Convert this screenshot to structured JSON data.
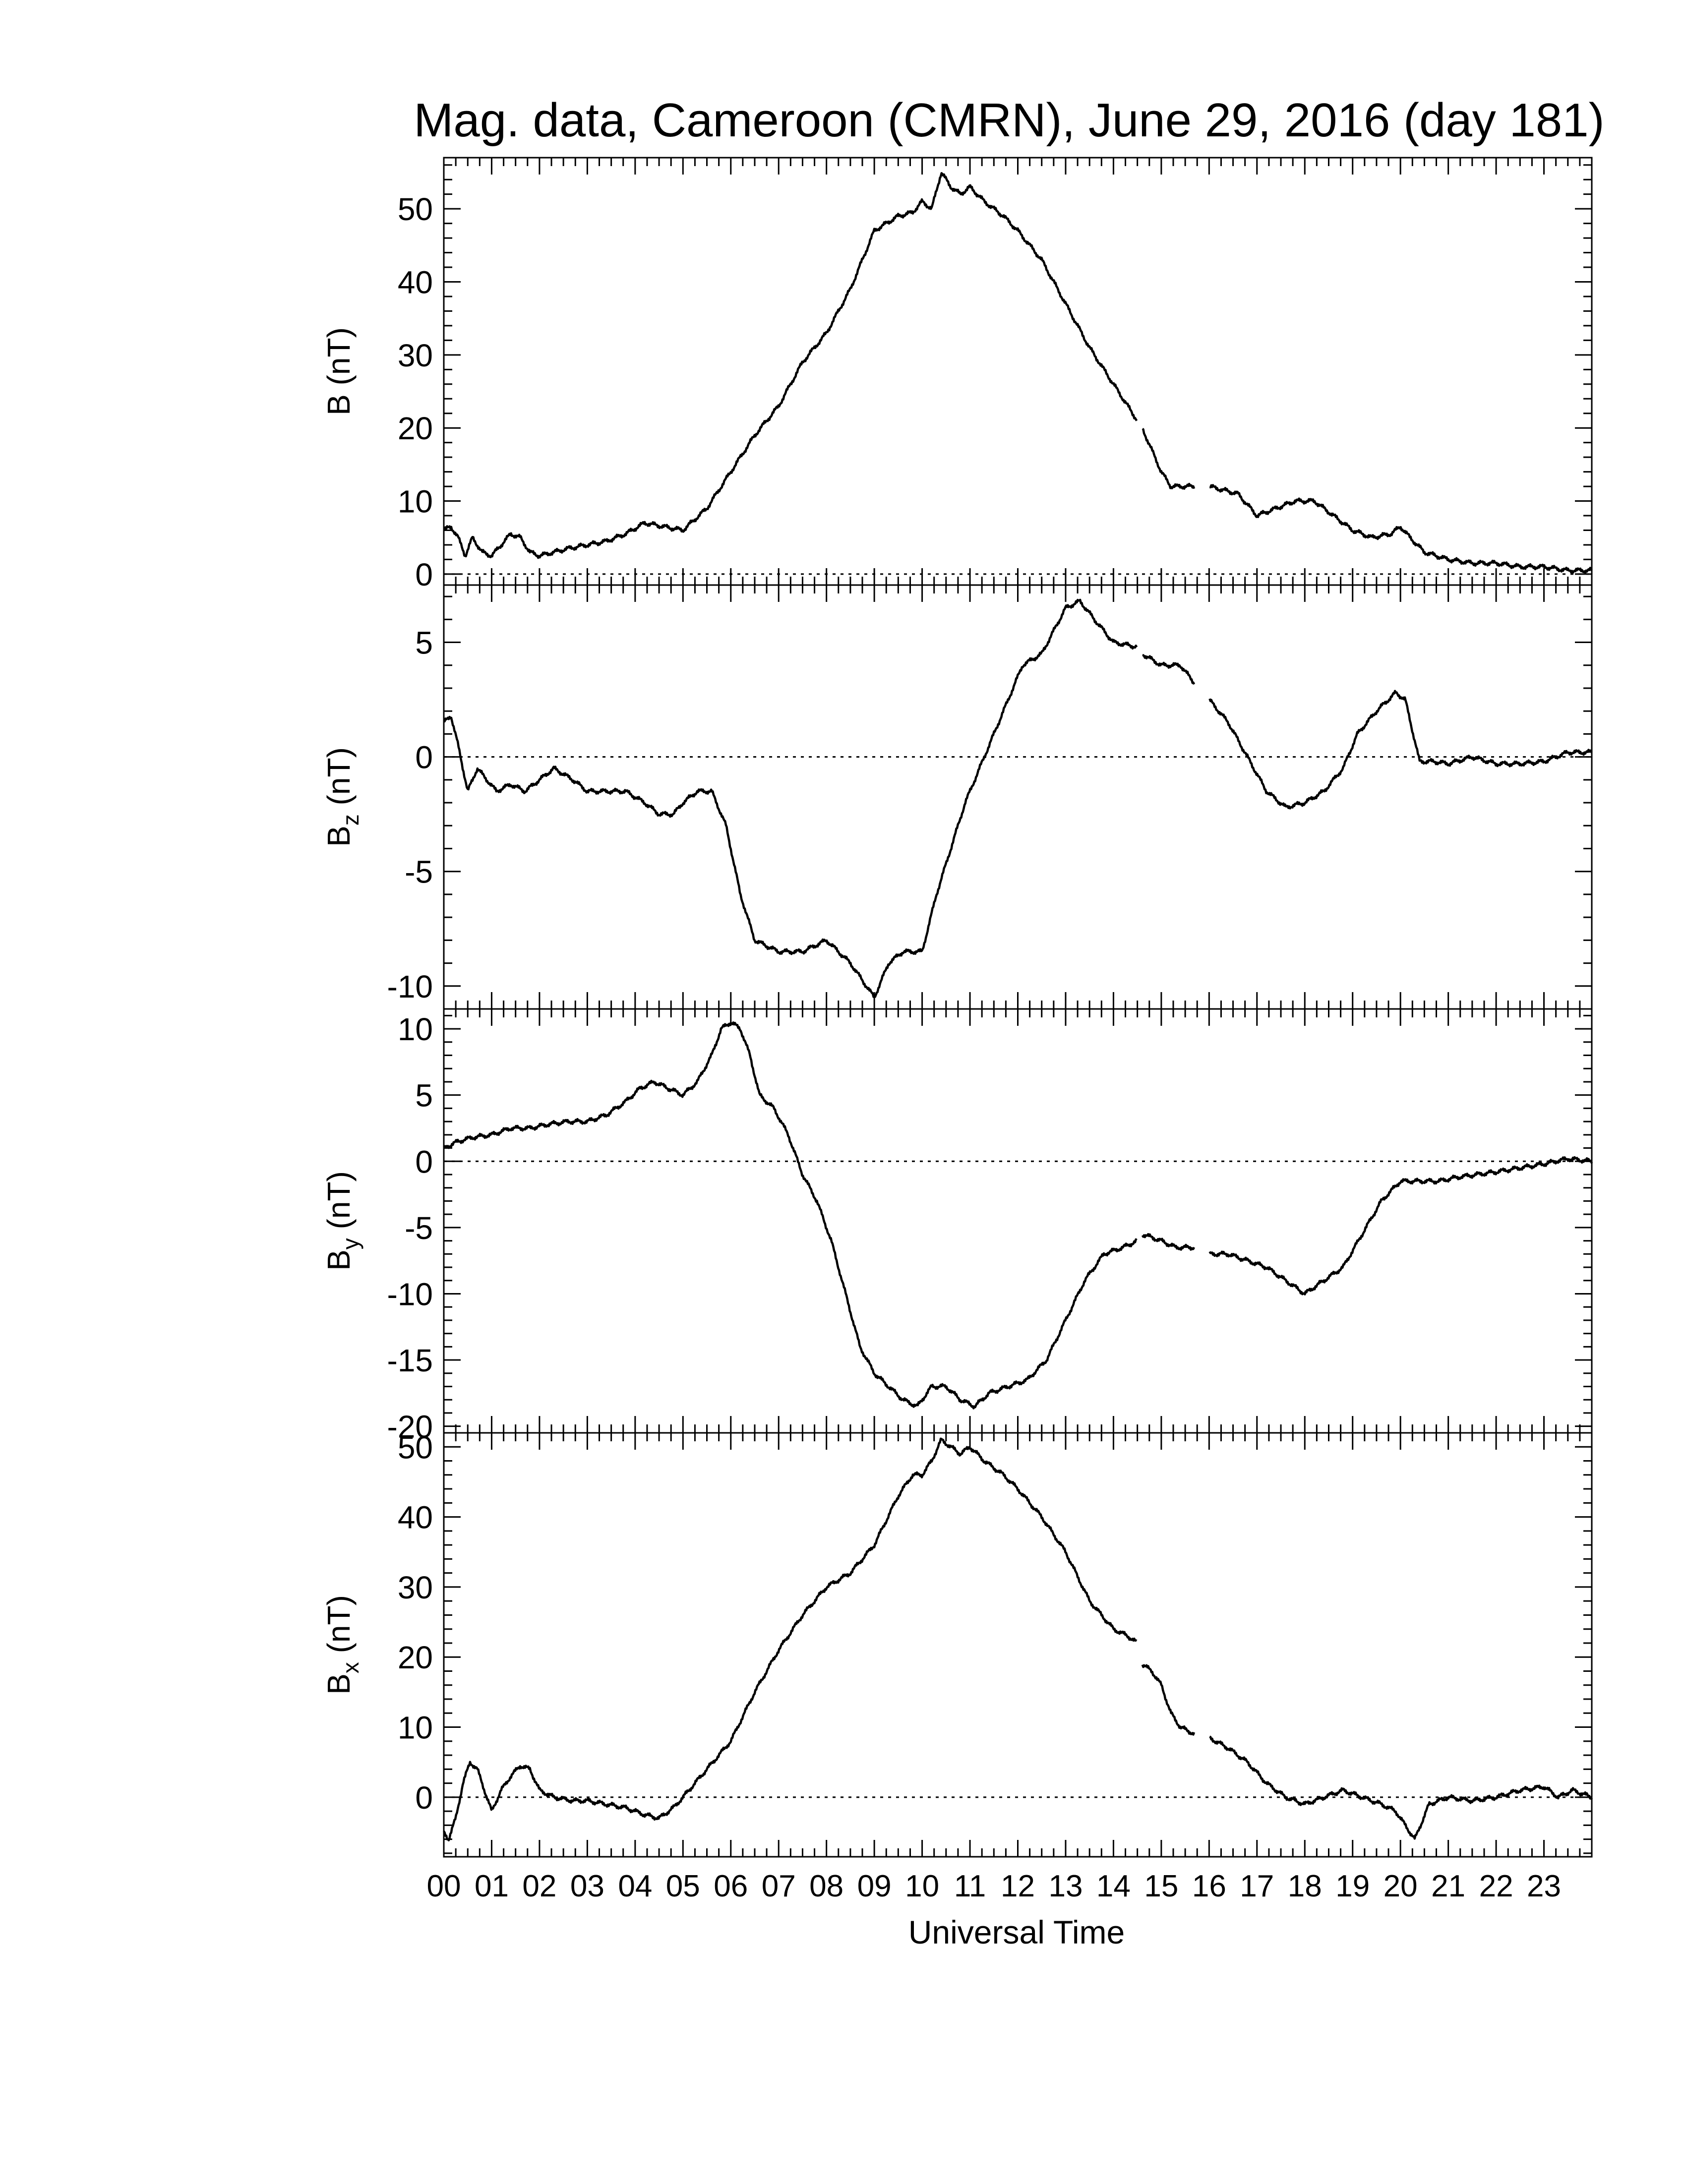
{
  "title": "Mag. data, Cameroon (CMRN), June 29, 2016 (day 181)",
  "xlabel": "Universal Time",
  "x_tick_labels": [
    "00",
    "01",
    "02",
    "03",
    "04",
    "05",
    "06",
    "07",
    "08",
    "09",
    "10",
    "11",
    "12",
    "13",
    "14",
    "15",
    "16",
    "17",
    "18",
    "19",
    "20",
    "21",
    "22",
    "23"
  ],
  "panels": [
    {
      "key": "B",
      "ylabel_main": "B",
      "ylabel_sub": "",
      "ylabel_unit": "(nT)",
      "ticks": [
        "0",
        "10",
        "20",
        "30",
        "40",
        "50"
      ]
    },
    {
      "key": "Bz",
      "ylabel_main": "B",
      "ylabel_sub": "z",
      "ylabel_unit": "(nT)",
      "ticks": [
        "-10",
        "-5",
        "0",
        "5"
      ]
    },
    {
      "key": "By",
      "ylabel_main": "B",
      "ylabel_sub": "y",
      "ylabel_unit": "(nT)",
      "ticks": [
        "-20",
        "-15",
        "-10",
        "-5",
        "0",
        "5",
        "10"
      ]
    },
    {
      "key": "Bx",
      "ylabel_main": "B",
      "ylabel_sub": "x",
      "ylabel_unit": "(nT)",
      "ticks": [
        "0",
        "10",
        "20",
        "30",
        "40",
        "50"
      ]
    }
  ],
  "colors": {
    "line": "#000000",
    "zero_line": "#000000",
    "background": "#ffffff"
  },
  "chart_data": [
    {
      "type": "line",
      "ylabel": "B (nT)",
      "xlim": [
        0,
        24
      ],
      "ylim": [
        -1.5,
        57
      ],
      "yticks": [
        0,
        10,
        20,
        30,
        40,
        50
      ],
      "zero_line": true,
      "gaps": [
        [
          14.5,
          14.6
        ],
        [
          15.7,
          16.0
        ]
      ],
      "series": [
        {
          "x": [
            0,
            0.15,
            0.3,
            0.45,
            0.6,
            0.8,
            1.0,
            1.2,
            1.4,
            1.6,
            1.8,
            2.0,
            2.3,
            2.6,
            3.0,
            3.4,
            3.8,
            4.2,
            4.6,
            5.0,
            5.5,
            6.0,
            6.5,
            7.0,
            7.5,
            8.0,
            8.5,
            9.0,
            9.5,
            9.8,
            10.0,
            10.2,
            10.4,
            10.6,
            10.8,
            11.0,
            11.3,
            11.7,
            12.0,
            12.5,
            13.0,
            13.5,
            14.0,
            14.3,
            14.5,
            14.6,
            14.8,
            15.0,
            15.2,
            15.4,
            15.7,
            16.0,
            16.3,
            16.6,
            17.0,
            17.4,
            17.8,
            18.2,
            18.6,
            19.0,
            19.4,
            19.8,
            20.0,
            20.2,
            20.5,
            21.0,
            21.5,
            22.0,
            22.5,
            23.0,
            23.5,
            24.0
          ],
          "y": [
            6,
            6.5,
            5,
            2.5,
            5,
            3,
            2.5,
            4,
            5.5,
            5,
            3,
            2.5,
            3,
            3.5,
            4,
            4.5,
            5.5,
            7,
            6.5,
            6,
            9,
            14,
            19,
            23,
            29,
            33,
            39,
            47,
            49,
            49.5,
            51,
            50,
            55,
            53,
            52,
            53,
            51,
            49,
            47,
            43,
            37,
            31,
            26,
            23,
            21,
            20,
            17,
            14,
            12,
            12,
            12,
            12,
            11.5,
            11,
            8,
            9,
            10,
            10,
            8,
            6,
            5,
            5.5,
            6.5,
            5,
            3,
            2,
            1.5,
            1.5,
            1,
            1,
            0.5,
            0.5
          ]
        }
      ]
    },
    {
      "type": "line",
      "ylabel": "Bz (nT)",
      "xlim": [
        0,
        24
      ],
      "ylim": [
        -11,
        7.5
      ],
      "yticks": [
        -10,
        -5,
        0,
        5
      ],
      "zero_line": true,
      "gaps": [
        [
          14.5,
          14.6
        ],
        [
          15.7,
          16.0
        ]
      ],
      "series": [
        {
          "x": [
            0,
            0.15,
            0.3,
            0.5,
            0.7,
            0.9,
            1.1,
            1.4,
            1.7,
            2.0,
            2.3,
            2.7,
            3.0,
            3.4,
            3.8,
            4.2,
            4.5,
            4.8,
            5.0,
            5.3,
            5.6,
            5.9,
            6.2,
            6.5,
            7.0,
            7.5,
            8.0,
            8.5,
            9.0,
            9.3,
            9.6,
            10.0,
            10.3,
            10.6,
            10.9,
            11.2,
            11.5,
            11.8,
            12.1,
            12.5,
            13.0,
            13.3,
            13.6,
            14.0,
            14.5,
            14.6,
            15.0,
            15.4,
            15.7,
            16.0,
            16.4,
            16.8,
            17.2,
            17.6,
            18.0,
            18.4,
            18.8,
            19.1,
            19.5,
            19.9,
            20.1,
            20.4,
            20.7,
            21.0,
            21.5,
            22.0,
            22.5,
            23.0,
            23.5,
            24.0
          ],
          "y": [
            1.5,
            1.8,
            0.5,
            -1.5,
            -0.5,
            -1,
            -1.5,
            -1.2,
            -1.5,
            -1,
            -0.5,
            -1,
            -1.5,
            -1.5,
            -1.5,
            -2,
            -2.5,
            -2.5,
            -2,
            -1.5,
            -1.5,
            -3,
            -6,
            -8,
            -8.5,
            -8.5,
            -8,
            -9,
            -10.5,
            -9,
            -8.5,
            -8.5,
            -6,
            -4,
            -2,
            -0.5,
            1,
            2.5,
            4,
            4.5,
            6.5,
            6.8,
            6,
            5,
            4.8,
            4.5,
            4,
            4,
            3.2,
            2.5,
            1.5,
            0,
            -1.5,
            -2.2,
            -2,
            -1.5,
            -0.5,
            1,
            2,
            2.8,
            2.5,
            -0.2,
            -0.2,
            -0.3,
            0,
            -0.3,
            -0.3,
            -0.2,
            0.2,
            0.2
          ]
        }
      ]
    },
    {
      "type": "line",
      "ylabel": "By (nT)",
      "xlim": [
        0,
        24
      ],
      "ylim": [
        -20.5,
        11.5
      ],
      "yticks": [
        -20,
        -15,
        -10,
        -5,
        0,
        5,
        10
      ],
      "zero_line": true,
      "gaps": [
        [
          14.5,
          14.6
        ],
        [
          15.7,
          16.0
        ]
      ],
      "series": [
        {
          "x": [
            0,
            0.3,
            0.6,
            1.0,
            1.4,
            1.8,
            2.2,
            2.6,
            3.0,
            3.4,
            3.8,
            4.1,
            4.4,
            4.7,
            5.0,
            5.3,
            5.6,
            5.8,
            6.0,
            6.2,
            6.4,
            6.6,
            6.9,
            7.2,
            7.5,
            7.8,
            8.1,
            8.4,
            8.7,
            9.0,
            9.3,
            9.6,
            9.9,
            10.2,
            10.5,
            10.8,
            11.1,
            11.4,
            11.8,
            12.2,
            12.6,
            13.0,
            13.4,
            13.8,
            14.2,
            14.5,
            14.6,
            15.0,
            15.3,
            15.7,
            16.0,
            16.4,
            16.8,
            17.2,
            17.6,
            18.0,
            18.4,
            18.8,
            19.2,
            19.6,
            20.0,
            20.4,
            20.8,
            21.2,
            21.6,
            22.0,
            22.5,
            23.0,
            23.5,
            24.0
          ],
          "y": [
            1,
            1.5,
            1.8,
            2,
            2.5,
            2.5,
            2.8,
            3,
            3,
            3.5,
            4.5,
            5.5,
            6,
            5.5,
            5,
            6,
            8,
            10,
            10.5,
            10,
            8,
            5,
            4,
            2,
            -1,
            -3,
            -6,
            -10,
            -14,
            -16,
            -17,
            -18,
            -18.5,
            -17,
            -17,
            -18,
            -18.5,
            -17.5,
            -17,
            -16.5,
            -15,
            -12,
            -9,
            -7,
            -6.5,
            -6,
            -5.5,
            -6,
            -6.5,
            -6.5,
            -7,
            -7,
            -7.5,
            -8,
            -9,
            -10,
            -9,
            -8,
            -5.5,
            -3,
            -1.5,
            -1.5,
            -1.5,
            -1.2,
            -1,
            -0.8,
            -0.5,
            -0.2,
            0.2,
            0
          ]
        }
      ]
    },
    {
      "type": "line",
      "ylabel": "Bx (nT)",
      "xlim": [
        0,
        24
      ],
      "ylim": [
        -8.5,
        52
      ],
      "yticks": [
        0,
        10,
        20,
        30,
        40,
        50
      ],
      "zero_line": true,
      "gaps": [
        [
          14.5,
          14.6
        ],
        [
          15.7,
          16.0
        ]
      ],
      "series": [
        {
          "x": [
            0,
            0.1,
            0.25,
            0.4,
            0.55,
            0.7,
            0.85,
            1.0,
            1.2,
            1.4,
            1.6,
            1.8,
            2.0,
            2.3,
            2.7,
            3.0,
            3.4,
            3.8,
            4.2,
            4.5,
            4.8,
            5.0,
            5.5,
            6.0,
            6.5,
            7.0,
            7.5,
            8.0,
            8.5,
            9.0,
            9.5,
            9.8,
            10.0,
            10.2,
            10.4,
            10.6,
            10.8,
            11.0,
            11.3,
            11.7,
            12.0,
            12.5,
            13.0,
            13.5,
            14.0,
            14.3,
            14.5,
            14.6,
            14.8,
            15.0,
            15.2,
            15.4,
            15.7,
            16.0,
            16.4,
            16.8,
            17.2,
            17.6,
            18.0,
            18.4,
            18.8,
            19.2,
            19.6,
            19.9,
            20.1,
            20.3,
            20.6,
            21.0,
            21.5,
            22.0,
            22.5,
            23.0,
            23.3,
            23.6,
            24.0
          ],
          "y": [
            -5,
            -6,
            -3,
            2,
            5,
            4,
            1,
            -2,
            1,
            3,
            4.5,
            4,
            1,
            0,
            -0.5,
            -0.5,
            -1,
            -1.5,
            -2.5,
            -3,
            -1.5,
            0,
            4,
            8,
            15,
            21,
            26,
            30,
            32,
            36,
            43,
            46,
            46,
            48,
            51,
            50,
            49,
            50,
            48,
            46,
            44,
            40,
            35,
            28,
            24,
            23,
            22,
            19,
            18,
            16,
            12,
            10,
            9,
            8.5,
            7,
            5,
            2,
            0,
            -1,
            0,
            1,
            0,
            -1,
            -2,
            -4,
            -6,
            -1,
            0,
            -0.5,
            0,
            1,
            1.5,
            0,
            1,
            0
          ]
        }
      ]
    }
  ]
}
